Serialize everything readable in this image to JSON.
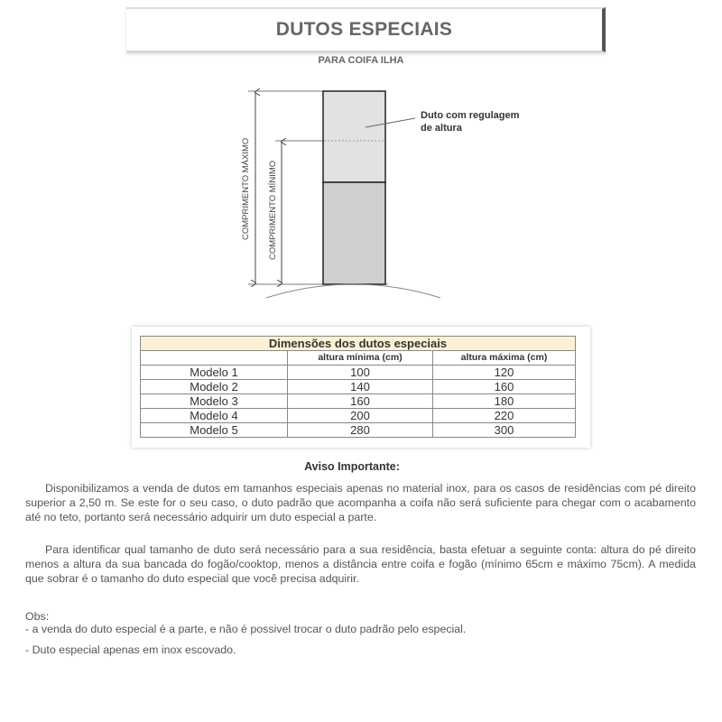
{
  "header": {
    "title": "DUTOS ESPECIAIS",
    "subtitle": "PARA COIFA ILHA"
  },
  "diagram": {
    "label_max": "COMPRIMENTO MÁXIMO",
    "label_min": "COMPRIMENTO MÍNIMO",
    "callout_line1": "Duto com regulagem",
    "callout_line2": "de altura"
  },
  "table": {
    "caption": "Dimensões dos dutos especiais",
    "columns": [
      "",
      "altura mínima (cm)",
      "altura máxima (cm)"
    ],
    "rows": [
      [
        "Modelo 1",
        "100",
        "120"
      ],
      [
        "Modelo 2",
        "140",
        "160"
      ],
      [
        "Modelo 3",
        "160",
        "180"
      ],
      [
        "Modelo 4",
        "200",
        "220"
      ],
      [
        "Modelo 5",
        "280",
        "300"
      ]
    ]
  },
  "notice": {
    "title": "Aviso Importante:",
    "paragraph1": "Disponibilizamos a venda de dutos em tamanhos especiais apenas no material inox, para os casos de residências com pé direito superior a 2,50 m. Se este for o seu caso, o duto padrão que acompanha a coifa não será suficiente para chegar com o acabamento até no teto, portanto será necessário adquirir um duto especial a parte.",
    "paragraph2": "Para identificar qual tamanho de duto será necessário para a sua residência, basta efetuar a seguinte conta: altura do pé direito menos a altura da sua bancada do fogão/cooktop, menos a distância entre coifa e fogão (mínimo 65cm e máximo 75cm). A medida que sobrar é o tamanho do duto especial que você precisa adquirir.",
    "obs_label": "Obs:",
    "obs1": "- a venda do duto especial é a parte, e não é possivel trocar o duto padrão pelo especial.",
    "obs2": "- Duto especial apenas em inox escovado."
  }
}
